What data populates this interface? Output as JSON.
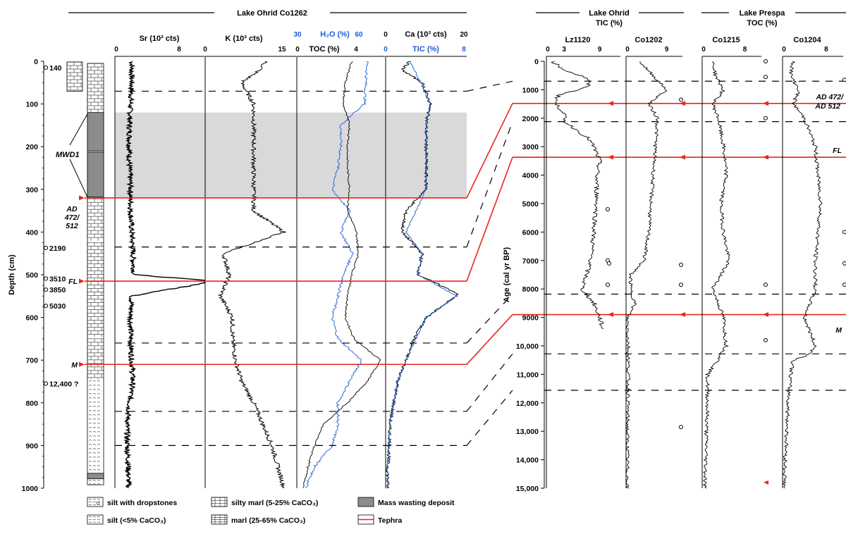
{
  "colors": {
    "tephra": "#e8261c",
    "blue": "#1a5fd6",
    "grey": "#d9d9d9",
    "mwd": "#8c8c8c",
    "black": "#000000"
  },
  "headers": {
    "co1262": "Lake Ohrid   Co1262",
    "ohrid_right_1": "Lake Ohrid",
    "ohrid_right_2": "TIC (%)",
    "prespa_1": "Lake Prespa",
    "prespa_2": "TOC (%)"
  },
  "left": {
    "ylabel": "Depth (cm)",
    "depth_ticks": [
      "0",
      "100",
      "200",
      "300",
      "400",
      "500",
      "600",
      "700",
      "800",
      "900",
      "1000"
    ],
    "mwd_label": "MWD1",
    "tephra_labels": [
      "AD 472/ 512",
      "FL",
      "M"
    ],
    "dates": [
      {
        "depth": 15,
        "label": "140"
      },
      {
        "depth": 437,
        "label": "2190"
      },
      {
        "depth": 509,
        "label": "3510"
      },
      {
        "depth": 535,
        "label": "3850"
      },
      {
        "depth": 573,
        "label": "5030"
      },
      {
        "depth": 755,
        "label": "12,400 ?"
      }
    ],
    "panels": {
      "sr": {
        "title": "Sr (10² cts)",
        "ticks": [
          "0",
          "8"
        ]
      },
      "k": {
        "title": "K (10³ cts)",
        "ticks": [
          "0",
          "15"
        ]
      },
      "h2o": {
        "title": "H₂O (%)",
        "ticks": [
          "30",
          "60"
        ]
      },
      "toc": {
        "title": "TOC (%)",
        "ticks": [
          "0",
          "4"
        ]
      },
      "ca": {
        "title": "Ca (10³ cts)",
        "ticks": [
          "0",
          "20"
        ]
      },
      "tic": {
        "title": "TIC (%)",
        "ticks": [
          "0",
          "8"
        ]
      }
    }
  },
  "right": {
    "ylabel": "Age (cal yr BP)",
    "age_ticks": [
      "0",
      "1000",
      "2000",
      "3000",
      "4000",
      "5000",
      "6000",
      "7000",
      "8000",
      "9000",
      "10,000",
      "11,000",
      "12,000",
      "13,000",
      "14,000",
      "15,000"
    ],
    "cores": [
      {
        "name": "Lz1120",
        "ticks": [
          "0",
          "3",
          "9"
        ]
      },
      {
        "name": "Co1202",
        "ticks": [
          "0",
          "9"
        ]
      },
      {
        "name": "Co1215",
        "ticks": [
          "0",
          "8"
        ]
      },
      {
        "name": "Co1204",
        "ticks": [
          "0",
          "8"
        ]
      }
    ],
    "tephra_labels": [
      "AD 472/ AD 512",
      "FL",
      "M"
    ]
  },
  "legend": [
    {
      "id": "dropstones",
      "label": "silt with dropstones"
    },
    {
      "id": "silt",
      "label": "silt (<5% CaCO₃)"
    },
    {
      "id": "siltymarl",
      "label": "silty marl (5-25% CaCO₃)"
    },
    {
      "id": "marl",
      "label": "marl (25-65% CaCO₃)"
    },
    {
      "id": "mwd",
      "label": "Mass wasting deposit"
    },
    {
      "id": "tephra",
      "label": "Tephra"
    }
  ],
  "chart_data": [
    {
      "type": "line",
      "title": "Lake Ohrid Co1262",
      "ylabel": "Depth (cm)",
      "ylim": [
        0,
        1000
      ],
      "tephra_depths": [
        {
          "name": "AD 472/512",
          "depth": 320
        },
        {
          "name": "FL",
          "depth": 515
        },
        {
          "name": "M",
          "depth": 710
        }
      ],
      "mwd_depth_range": [
        120,
        320
      ],
      "dashed_depths": [
        70,
        435,
        660,
        820,
        900
      ],
      "series": [
        {
          "name": "Sr (10² cts)",
          "xlim": [
            0,
            8
          ],
          "depth": [
            0,
            50,
            100,
            150,
            200,
            250,
            300,
            350,
            400,
            450,
            500,
            515,
            550,
            600,
            650,
            700,
            750,
            800,
            850,
            900,
            950,
            1000
          ],
          "values": [
            1.5,
            1.5,
            1.4,
            1.3,
            1.3,
            1.3,
            1.4,
            1.4,
            1.5,
            1.6,
            1.7,
            9,
            1.5,
            1.4,
            1.4,
            1.5,
            1.6,
            1.3,
            1.1,
            1.1,
            1.2,
            1.2
          ]
        },
        {
          "name": "K (10³ cts)",
          "xlim": [
            0,
            15
          ],
          "depth": [
            0,
            20,
            50,
            100,
            150,
            200,
            250,
            300,
            350,
            400,
            420,
            450,
            500,
            550,
            600,
            650,
            700,
            750,
            800,
            850,
            900,
            950,
            1000
          ],
          "values": [
            10,
            9,
            6,
            8,
            8,
            8,
            8,
            8,
            8,
            13,
            9,
            3,
            4,
            2.5,
            4.5,
            4.5,
            5,
            6,
            8,
            9.5,
            11,
            12,
            13
          ]
        },
        {
          "name": "H₂O (%)",
          "xlim": [
            30,
            60
          ],
          "depth": [
            0,
            100,
            150,
            200,
            250,
            300,
            350,
            400,
            450,
            500,
            550,
            600,
            650,
            700,
            750,
            800,
            850,
            900,
            950,
            1000
          ],
          "values": [
            54,
            53,
            45,
            45,
            44,
            42,
            48,
            45,
            49,
            46,
            44,
            42,
            44,
            52,
            48,
            44,
            44,
            42,
            36,
            33
          ]
        },
        {
          "name": "TOC (%)",
          "xlim": [
            0,
            4
          ],
          "depth": [
            0,
            50,
            100,
            150,
            200,
            250,
            300,
            350,
            400,
            450,
            500,
            550,
            600,
            650,
            700,
            750,
            800,
            850,
            900,
            950,
            1000
          ],
          "values": [
            2.5,
            2.2,
            2.1,
            2.4,
            2.3,
            2.3,
            2.4,
            2.3,
            2.7,
            2.8,
            2.5,
            2.3,
            2.2,
            2.6,
            3.8,
            3.2,
            2.3,
            1.2,
            0.8,
            0.5,
            0.3
          ]
        },
        {
          "name": "Ca (10³ cts)",
          "xlim": [
            0,
            20
          ],
          "depth": [
            0,
            20,
            50,
            100,
            150,
            200,
            250,
            300,
            350,
            400,
            450,
            500,
            545,
            600,
            650,
            700,
            750,
            800,
            850,
            900,
            950,
            1000
          ],
          "values": [
            6,
            4,
            9,
            11,
            10,
            10,
            10,
            10,
            5,
            4,
            9,
            8,
            18,
            10,
            7,
            5,
            3,
            2,
            1,
            1,
            0.5,
            0.5
          ]
        },
        {
          "name": "TIC (%)",
          "xlim": [
            0,
            8
          ],
          "depth": [
            0,
            50,
            100,
            150,
            200,
            250,
            300,
            350,
            400,
            450,
            500,
            550,
            600,
            650,
            700,
            750,
            800,
            850,
            900,
            950,
            1000
          ],
          "values": [
            2.4,
            3.5,
            4.4,
            4,
            4,
            4,
            4,
            3,
            2,
            3.6,
            3.2,
            7,
            4,
            3,
            2,
            1.2,
            0.8,
            0.4,
            0.3,
            0.2,
            0.2
          ]
        }
      ]
    },
    {
      "type": "line",
      "ylabel": "Age (cal yr BP)",
      "ylim": [
        0,
        15000
      ],
      "tephra_ages": [
        {
          "name": "AD 472/512",
          "age": 1480
        },
        {
          "name": "FL",
          "age": 3370
        },
        {
          "name": "M",
          "age": 8900
        }
      ],
      "dashed_ages": [
        700,
        2120,
        8180,
        10280,
        11560
      ],
      "series": [
        {
          "name": "Lz1120",
          "xlim": [
            0,
            9
          ],
          "age": [
            0,
            300,
            600,
            900,
            1200,
            1500,
            1800,
            2100,
            2400,
            2700,
            3000,
            3500,
            4000,
            5000,
            6000,
            7000,
            8000,
            8500,
            9000,
            9400
          ],
          "values": [
            1,
            3,
            7,
            7,
            2,
            1.5,
            3,
            3,
            5,
            7,
            8,
            9,
            8.5,
            8.5,
            8,
            7.5,
            6,
            8,
            9,
            9.5
          ]
        },
        {
          "name": "Co1202",
          "xlim": [
            0,
            9
          ],
          "age": [
            0,
            500,
            1000,
            1500,
            2000,
            3000,
            4000,
            5000,
            6000,
            7000,
            7500,
            8000,
            8500,
            9000,
            10000,
            11000,
            12000,
            13000,
            14000,
            15000
          ],
          "values": [
            3,
            6,
            9,
            5,
            7,
            6.5,
            6,
            5.5,
            5,
            4,
            1,
            1,
            2,
            0.3,
            0.5,
            0.5,
            0.4,
            0.3,
            0.3,
            0.3
          ]
        },
        {
          "name": "Co1215",
          "xlim": [
            0,
            8
          ],
          "age": [
            0,
            500,
            1000,
            1500,
            2000,
            3000,
            4000,
            5000,
            6000,
            7000,
            8000,
            9000,
            10000,
            10500,
            11000,
            12000,
            13000,
            14000,
            15000
          ],
          "values": [
            2,
            2.5,
            4,
            2,
            3,
            4,
            4.5,
            3.5,
            4,
            5,
            2,
            4,
            4.5,
            3,
            1,
            1,
            0.8,
            0.7,
            0.5
          ]
        },
        {
          "name": "Co1204",
          "xlim": [
            0,
            8
          ],
          "age": [
            0,
            500,
            1000,
            1500,
            2000,
            2500,
            3000,
            4000,
            5000,
            6000,
            7000,
            8000,
            8500,
            9000,
            10000,
            10300,
            10500,
            11000,
            12000,
            13000,
            14000,
            15000
          ],
          "values": [
            2,
            1.5,
            3,
            2,
            4,
            5,
            6,
            6.5,
            7,
            6.5,
            6,
            6,
            5,
            4,
            6,
            5,
            2,
            1.5,
            1,
            0.8,
            0.5,
            0.3
          ]
        }
      ]
    }
  ]
}
